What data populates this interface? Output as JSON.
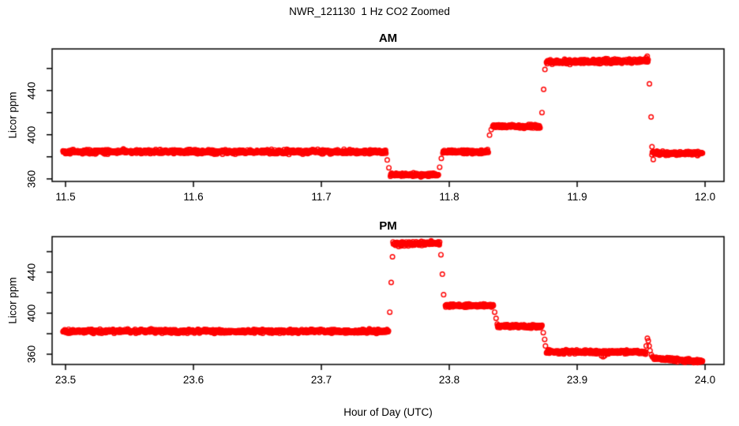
{
  "figure": {
    "title": "NWR_121130  1 Hz CO2 Zoomed",
    "x_axis_label": "Hour of Day (UTC)",
    "y_axis_label": "Licor ppm",
    "point_color": "#FF0000",
    "axis_color": "#000000",
    "background": "#FFFFFF"
  },
  "chart_data": [
    {
      "type": "scatter",
      "title": "AM",
      "xlabel": "",
      "ylabel": "Licor ppm",
      "marker": "open-circle",
      "color": "#FF0000",
      "grid": false,
      "legend": "none",
      "xlim": [
        11.4895,
        12.0148
      ],
      "ylim": [
        357.6,
        477.6
      ],
      "xticks": [
        11.5,
        11.6,
        11.7,
        11.8,
        11.9,
        12.0
      ],
      "xtick_labels": [
        "11.5",
        "11.6",
        "11.7",
        "11.8",
        "11.9",
        "12.0"
      ],
      "yticks": [
        360,
        380,
        400,
        420,
        440,
        460
      ],
      "ytick_labels": [
        "360",
        "",
        "400",
        "",
        "440",
        ""
      ],
      "sample_interval_hours": 0.0002778,
      "noise_sd_ppm": 0.9,
      "plateaus": [
        [
          11.498,
          11.7505,
          384.5,
          384.5,
          0.9
        ],
        [
          11.754,
          11.7915,
          363.5,
          363.5,
          0.8
        ],
        [
          11.795,
          11.8305,
          384.5,
          384.5,
          0.8
        ],
        [
          11.834,
          11.871,
          407.5,
          407.5,
          0.8
        ],
        [
          11.876,
          11.9555,
          465.5,
          467.0,
          1.0
        ],
        [
          11.9585,
          11.998,
          383.0,
          383.0,
          0.8
        ]
      ],
      "transition_points": [
        [
          11.7515,
          377.0
        ],
        [
          11.7528,
          370.0
        ],
        [
          11.7925,
          370.5
        ],
        [
          11.7938,
          378.5
        ],
        [
          11.8315,
          399.5
        ],
        [
          11.8328,
          404.5
        ],
        [
          11.8725,
          420.0
        ],
        [
          11.8738,
          441.0
        ],
        [
          11.8748,
          459.0
        ],
        [
          11.954,
          469.5
        ],
        [
          11.9548,
          471.0
        ],
        [
          11.9565,
          446.0
        ],
        [
          11.9578,
          416.0
        ],
        [
          11.9585,
          389.0
        ],
        [
          11.9595,
          377.5
        ]
      ]
    },
    {
      "type": "scatter",
      "title": "PM",
      "xlabel": "Hour of Day (UTC)",
      "ylabel": "Licor ppm",
      "marker": "open-circle",
      "color": "#FF0000",
      "grid": false,
      "legend": "none",
      "xlim": [
        23.4895,
        24.0148
      ],
      "ylim": [
        350.0,
        474.6
      ],
      "xticks": [
        23.5,
        23.6,
        23.7,
        23.8,
        23.9,
        24.0
      ],
      "xtick_labels": [
        "23.5",
        "23.6",
        "23.7",
        "23.8",
        "23.9",
        "24.0"
      ],
      "yticks": [
        360,
        380,
        400,
        420,
        440,
        460
      ],
      "ytick_labels": [
        "360",
        "",
        "400",
        "",
        "440",
        ""
      ],
      "sample_interval_hours": 0.0002778,
      "noise_sd_ppm": 0.9,
      "plateaus": [
        [
          23.498,
          23.7525,
          382.5,
          382.5,
          0.9
        ],
        [
          23.756,
          23.7925,
          467.5,
          468.5,
          1.0
        ],
        [
          23.797,
          23.8345,
          407.5,
          407.5,
          0.8
        ],
        [
          23.8375,
          23.8725,
          387.5,
          387.0,
          0.8
        ],
        [
          23.876,
          23.9535,
          362.5,
          362.0,
          0.9
        ],
        [
          23.9595,
          23.998,
          356.0,
          353.0,
          0.8
        ]
      ],
      "transition_points": [
        [
          23.7535,
          401.0
        ],
        [
          23.7546,
          430.0
        ],
        [
          23.7556,
          455.0
        ],
        [
          23.7935,
          457.0
        ],
        [
          23.7946,
          438.0
        ],
        [
          23.7956,
          418.0
        ],
        [
          23.8355,
          401.0
        ],
        [
          23.8366,
          395.0
        ],
        [
          23.8735,
          381.0
        ],
        [
          23.8746,
          374.5
        ],
        [
          23.8752,
          368.0
        ],
        [
          23.919,
          358.5
        ],
        [
          23.9203,
          357.5
        ],
        [
          23.9215,
          358.5
        ],
        [
          23.954,
          368.0
        ],
        [
          23.9549,
          375.5
        ],
        [
          23.9556,
          373.0
        ],
        [
          23.9563,
          368.0
        ],
        [
          23.957,
          363.5
        ],
        [
          23.958,
          359.5
        ],
        [
          23.9588,
          357.5
        ]
      ]
    }
  ]
}
